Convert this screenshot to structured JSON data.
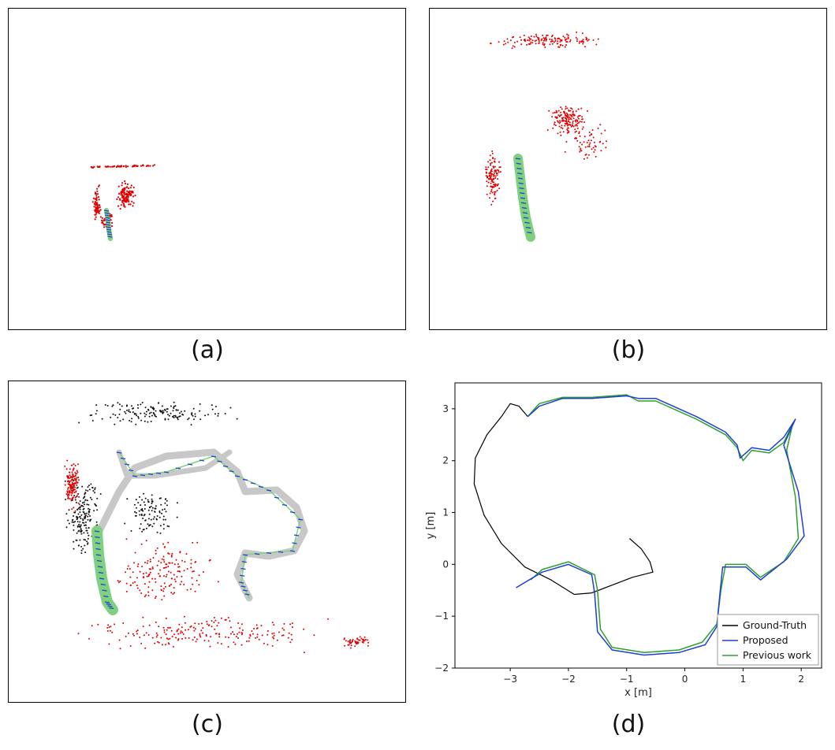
{
  "panels": {
    "a": {
      "caption": "(a)"
    },
    "b": {
      "caption": "(b)"
    },
    "c": {
      "caption": "(c)"
    },
    "d": {
      "caption": "(d)"
    }
  },
  "chart_data": {
    "type": "line",
    "title": "",
    "xlabel": "x [m]",
    "ylabel": "y [m]",
    "xlim": [
      -3.95,
      2.35
    ],
    "ylim": [
      -2.0,
      3.5
    ],
    "xticks": [
      -3,
      -2,
      -1,
      0,
      1,
      2
    ],
    "yticks": [
      -2,
      -1,
      0,
      1,
      2,
      3
    ],
    "grid": false,
    "legend": "bottom-right",
    "colors": {
      "ground_truth": "#000000",
      "proposed": "#1f3fd0",
      "previous_work": "#2ca02c"
    },
    "series": [
      {
        "name": "Ground-Truth",
        "points": [
          [
            -0.95,
            0.5
          ],
          [
            -0.75,
            0.3
          ],
          [
            -0.6,
            0.05
          ],
          [
            -0.55,
            -0.15
          ],
          [
            -0.9,
            -0.25
          ],
          [
            -1.25,
            -0.4
          ],
          [
            -1.6,
            -0.55
          ],
          [
            -1.9,
            -0.58
          ],
          [
            -2.3,
            -0.3
          ],
          [
            -2.75,
            -0.05
          ],
          [
            -3.15,
            0.4
          ],
          [
            -3.45,
            0.95
          ],
          [
            -3.62,
            1.55
          ],
          [
            -3.6,
            2.05
          ],
          [
            -3.4,
            2.5
          ],
          [
            -3.15,
            2.85
          ],
          [
            -3.0,
            3.1
          ],
          [
            -2.85,
            3.05
          ],
          [
            -2.7,
            2.85
          ]
        ]
      },
      {
        "name": "Proposed",
        "points": [
          [
            -2.7,
            2.85
          ],
          [
            -2.5,
            3.05
          ],
          [
            -2.1,
            3.2
          ],
          [
            -1.6,
            3.2
          ],
          [
            -1.0,
            3.25
          ],
          [
            -0.8,
            3.2
          ],
          [
            -0.5,
            3.2
          ],
          [
            0.2,
            2.85
          ],
          [
            0.7,
            2.55
          ],
          [
            0.9,
            2.3
          ],
          [
            0.95,
            2.05
          ],
          [
            1.15,
            2.25
          ],
          [
            1.45,
            2.2
          ],
          [
            1.7,
            2.45
          ],
          [
            1.9,
            2.8
          ],
          [
            1.7,
            2.3
          ],
          [
            1.95,
            1.4
          ],
          [
            2.05,
            0.55
          ],
          [
            1.75,
            0.1
          ],
          [
            1.3,
            -0.3
          ],
          [
            1.05,
            -0.05
          ],
          [
            0.65,
            -0.05
          ],
          [
            0.6,
            -0.6
          ],
          [
            0.55,
            -1.2
          ],
          [
            0.35,
            -1.55
          ],
          [
            -0.1,
            -1.7
          ],
          [
            -0.7,
            -1.75
          ],
          [
            -1.25,
            -1.65
          ],
          [
            -1.5,
            -1.3
          ],
          [
            -1.55,
            -0.55
          ],
          [
            -1.6,
            -0.2
          ],
          [
            -2.0,
            0.0
          ],
          [
            -2.45,
            -0.15
          ],
          [
            -2.9,
            -0.45
          ]
        ]
      },
      {
        "name": "Previous work",
        "points": [
          [
            -2.7,
            2.85
          ],
          [
            -2.5,
            3.1
          ],
          [
            -2.1,
            3.22
          ],
          [
            -1.6,
            3.22
          ],
          [
            -1.0,
            3.27
          ],
          [
            -0.8,
            3.15
          ],
          [
            -0.5,
            3.15
          ],
          [
            0.2,
            2.8
          ],
          [
            0.7,
            2.5
          ],
          [
            0.9,
            2.25
          ],
          [
            1.0,
            2.0
          ],
          [
            1.15,
            2.2
          ],
          [
            1.45,
            2.15
          ],
          [
            1.7,
            2.35
          ],
          [
            1.85,
            2.7
          ],
          [
            1.75,
            2.2
          ],
          [
            1.9,
            1.3
          ],
          [
            1.95,
            0.5
          ],
          [
            1.7,
            0.05
          ],
          [
            1.3,
            -0.25
          ],
          [
            1.05,
            0.0
          ],
          [
            0.7,
            0.0
          ],
          [
            0.62,
            -0.5
          ],
          [
            0.55,
            -1.15
          ],
          [
            0.3,
            -1.5
          ],
          [
            -0.1,
            -1.65
          ],
          [
            -0.7,
            -1.7
          ],
          [
            -1.25,
            -1.6
          ],
          [
            -1.45,
            -1.25
          ],
          [
            -1.5,
            -0.5
          ],
          [
            -1.55,
            -0.2
          ],
          [
            -2.0,
            0.05
          ],
          [
            -2.45,
            -0.1
          ],
          [
            -2.65,
            -0.3
          ]
        ]
      }
    ]
  }
}
